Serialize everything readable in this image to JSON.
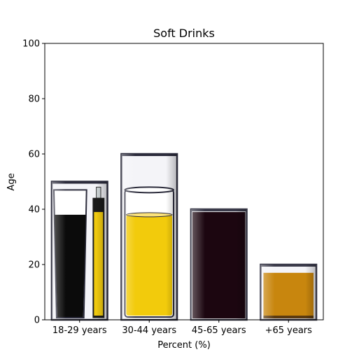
{
  "chart_data": {
    "type": "bar",
    "title": "Soft Drinks",
    "xlabel": "Percent (%)",
    "ylabel": "Age",
    "categories": [
      "18-29 years",
      "30-44 years",
      "45-65 years",
      "+65 years"
    ],
    "values": [
      50,
      60,
      40,
      20
    ],
    "ylim": [
      0,
      100
    ],
    "yticks": [
      0,
      20,
      40,
      60,
      80,
      100
    ],
    "grid": false,
    "bar_fill_levels": [
      38,
      38,
      39,
      17
    ],
    "bar_styles": [
      {
        "kind": "beer-pint-and-bottle",
        "liquid": "#0b0b0b",
        "glass": "#2c2c3c"
      },
      {
        "kind": "beer-mug",
        "liquid": "#f2cb0c",
        "glass": "#2c2c3c"
      },
      {
        "kind": "dark-glass",
        "liquid": "#1c0610",
        "glass": "#3a3a4a"
      },
      {
        "kind": "tumbler",
        "liquid": "#c8860e",
        "glass": "#3a3a4a"
      }
    ]
  }
}
